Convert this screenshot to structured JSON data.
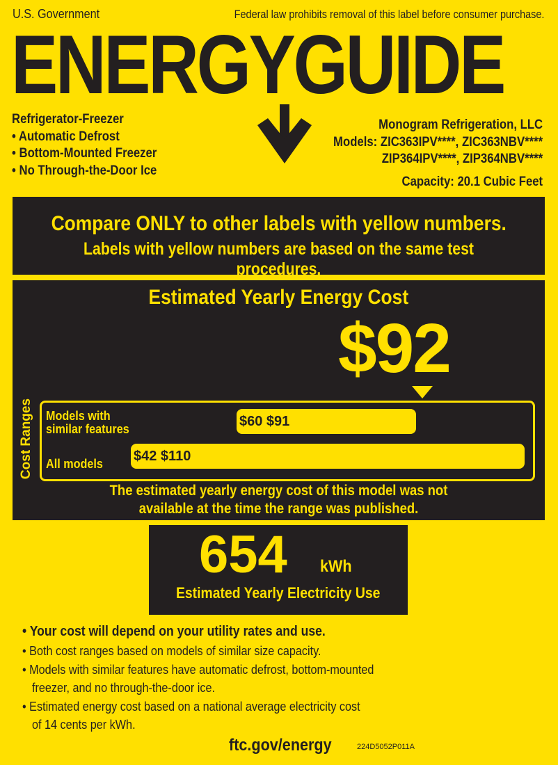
{
  "header": {
    "gov": "U.S. Government",
    "notice": "Federal law prohibits removal of this label before consumer purchase.",
    "logo": "ENERGYGUIDE"
  },
  "product": {
    "type": "Refrigerator-Freezer",
    "features": [
      "• Automatic Defrost",
      "• Bottom-Mounted Freezer",
      "• No Through-the-Door Ice"
    ]
  },
  "maker": {
    "name": "Monogram Refrigeration, LLC",
    "models_line1": "Models: ZIC363IPV****, ZIC363NBV****",
    "models_line2": "ZIP364IPV****, ZIP364NBV****",
    "capacity": "Capacity: 20.1 Cubic Feet"
  },
  "compare": {
    "line1": "Compare ONLY to other labels with yellow numbers.",
    "line2": "Labels with yellow numbers are based on the same test procedures."
  },
  "cost": {
    "title": "Estimated Yearly Energy Cost",
    "value": "$92",
    "ranges_label": "Cost Ranges",
    "similar": {
      "label1": "Models with",
      "label2": "similar features",
      "range": "$60 $91"
    },
    "all": {
      "label": "All models",
      "range": "$42 $110"
    },
    "note1": "The estimated yearly energy cost of this model was not",
    "note2": "available at the time the range was published."
  },
  "usage": {
    "value": "654",
    "unit": "kWh",
    "label": "Estimated Yearly Electricity Use"
  },
  "bullets": [
    "•  Your cost will depend on your utility rates and use.",
    "•  Both cost ranges based on models of similar size capacity.",
    "•  Models with similar features have automatic defrost, bottom-mounted",
    "freezer, and no through-the-door ice.",
    "•  Estimated energy cost based on a national average electricity cost",
    "of 14 cents per kWh."
  ],
  "footer": {
    "url": "ftc.gov/energy",
    "code": "224D5052P011A"
  },
  "colors": {
    "yellow": "#FFE000",
    "dark": "#231f20"
  }
}
